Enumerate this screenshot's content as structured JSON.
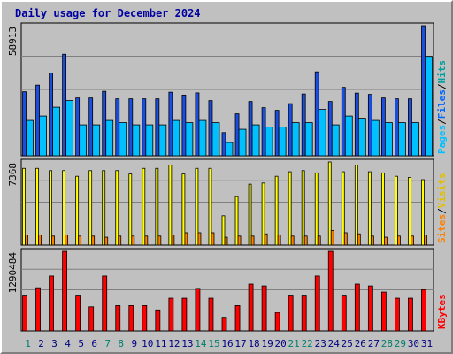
{
  "chart_data": {
    "type": "bar",
    "title": "Daily usage for December 2024",
    "days": [
      "1",
      "2",
      "3",
      "4",
      "5",
      "6",
      "7",
      "8",
      "9",
      "10",
      "11",
      "12",
      "13",
      "14",
      "15",
      "16",
      "17",
      "18",
      "19",
      "20",
      "21",
      "22",
      "23",
      "24",
      "25",
      "26",
      "27",
      "28",
      "29",
      "30",
      "31"
    ],
    "weekend_days": [
      "1",
      "7",
      "8",
      "14",
      "15",
      "21",
      "22",
      "28",
      "29"
    ],
    "panels": [
      {
        "id": "hits",
        "ymax_label": "58913",
        "ymax": 58913,
        "side_labels": [
          {
            "text": "Hits",
            "color": "#00a0a0"
          },
          {
            "text": "/",
            "color": "#000000"
          },
          {
            "text": "Files",
            "color": "#0066ff"
          },
          {
            "text": "/",
            "color": "#000000"
          },
          {
            "text": "Pages",
            "color": "#00c0ff"
          }
        ],
        "series": [
          {
            "name": "Hits",
            "color": "#1a4ee0",
            "values": [
              29000,
              32000,
              37500,
              46000,
              26200,
              26200,
              29200,
              25800,
              25800,
              25800,
              25800,
              28800,
              27500,
              28500,
              25000,
              10500,
              19000,
              24600,
              21800,
              20600,
              23600,
              28000,
              38000,
              24600,
              31000,
              28400,
              27800,
              26200,
              25800,
              25800,
              58913
            ]
          },
          {
            "name": "Files",
            "color": "#00c0ff",
            "values": [
              16000,
              18000,
              22000,
              25000,
              14000,
              14000,
              16000,
              15000,
              14000,
              14000,
              14000,
              16000,
              15000,
              16000,
              15000,
              6000,
              12000,
              14000,
              13000,
              13000,
              15000,
              15000,
              21000,
              14000,
              18000,
              17000,
              16000,
              15000,
              15000,
              15000,
              45000
            ]
          }
        ]
      },
      {
        "id": "sites",
        "ymax_label": "7368",
        "ymax": 7368,
        "side_labels": [
          {
            "text": "Visits",
            "color": "#e0c000"
          },
          {
            "text": "/",
            "color": "#000000"
          },
          {
            "text": "Sites",
            "color": "#ff8000"
          }
        ],
        "series": [
          {
            "name": "Visits",
            "color": "#ffff00",
            "values": [
              6800,
              6800,
              6600,
              6600,
              6100,
              6600,
              6600,
              6600,
              6300,
              6800,
              6800,
              7100,
              6300,
              6800,
              6800,
              2600,
              4300,
              5400,
              5500,
              6100,
              6500,
              6600,
              6400,
              7368,
              6500,
              7100,
              6500,
              6400,
              6100,
              6000,
              5800
            ]
          },
          {
            "name": "Sites",
            "color": "#ff8000",
            "values": [
              900,
              900,
              800,
              900,
              800,
              800,
              700,
              800,
              800,
              800,
              800,
              900,
              1100,
              1100,
              1100,
              700,
              800,
              800,
              1000,
              900,
              800,
              800,
              800,
              1300,
              1100,
              1000,
              800,
              700,
              800,
              800,
              900
            ]
          }
        ]
      },
      {
        "id": "kbytes",
        "ymax_label": "1290484",
        "ymax": 1290484,
        "side_labels": [
          {
            "text": "KBytes",
            "color": "#ff0000"
          }
        ],
        "series": [
          {
            "name": "KBytes",
            "color": "#ff0000",
            "values": [
              580000,
              700000,
              890000,
              1290484,
              580000,
              390000,
              890000,
              410000,
              410000,
              410000,
              340000,
              530000,
              530000,
              690000,
              530000,
              220000,
              410000,
              760000,
              730000,
              300000,
              580000,
              580000,
              890000,
              1290484,
              580000,
              760000,
              730000,
              630000,
              530000,
              530000,
              670000
            ]
          }
        ]
      }
    ]
  }
}
